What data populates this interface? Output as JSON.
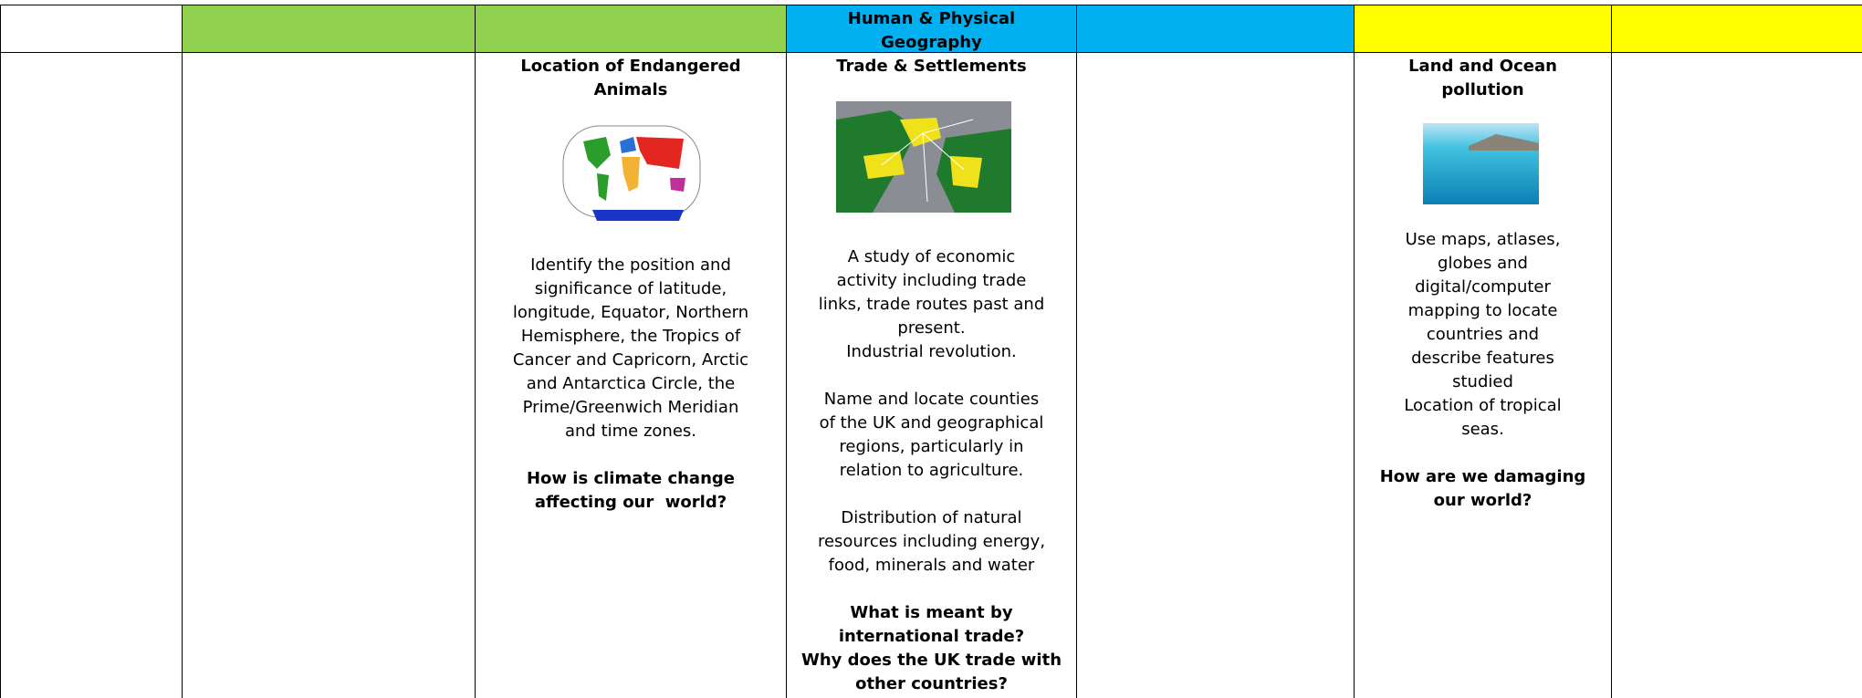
{
  "header": {
    "title_lines": [
      "Human & Physical",
      "Geography"
    ]
  },
  "columns": [
    {
      "title_lines": [
        "Location of Endangered",
        "Animals"
      ],
      "blocks": [
        {
          "bold": false,
          "lines": [
            "Identify the position and",
            "significance of latitude,",
            "longitude, Equator, Northern",
            "Hemisphere, the Tropics of",
            "Cancer and Capricorn, Arctic",
            "and Antarctica Circle, the",
            "Prime/Greenwich Meridian",
            "and time zones."
          ]
        },
        {
          "bold": true,
          "lines": [
            "How is climate change",
            "affecting our  world?"
          ]
        }
      ]
    },
    {
      "title_lines": [
        "Trade & Settlements"
      ],
      "blocks": [
        {
          "bold": false,
          "lines": [
            "A study of economic",
            "activity including trade",
            "links, trade routes past and",
            "present.",
            "Industrial revolution."
          ]
        },
        {
          "bold": false,
          "lines": [
            "Name and locate counties",
            "of the UK and geographical",
            "regions, particularly in",
            "relation to agriculture."
          ]
        },
        {
          "bold": false,
          "lines": [
            "Distribution of natural",
            "resources including energy,",
            "food, minerals and water"
          ]
        },
        {
          "bold": true,
          "lines": [
            "What is meant by",
            "international trade?",
            "Why does the UK trade with",
            "other countries?"
          ]
        }
      ]
    },
    {
      "title_lines": [
        "Land and Ocean",
        "pollution"
      ],
      "blocks": [
        {
          "bold": false,
          "lines": [
            "Use maps, atlases,",
            "globes and",
            "digital/computer",
            "mapping to locate",
            "countries and",
            "describe features",
            "studied",
            "Location of tropical",
            "seas."
          ]
        },
        {
          "bold": true,
          "lines": [
            "How are we damaging",
            "our world?"
          ]
        }
      ]
    }
  ]
}
